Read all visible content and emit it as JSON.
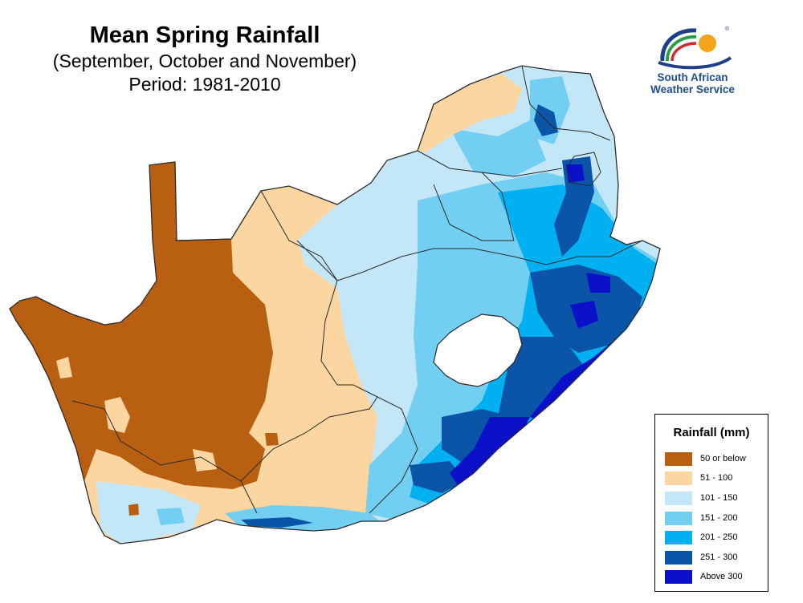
{
  "title": {
    "main": "Mean Spring Rainfall",
    "months": "(September, October and November)",
    "period": "Period: 1981-2010"
  },
  "logo": {
    "line1": "South African",
    "line2": "Weather Service",
    "icon": "saws-logo-icon"
  },
  "legend": {
    "title": "Rainfall (mm)",
    "items": [
      {
        "label": "50 or below",
        "color": "#b85f12"
      },
      {
        "label": "51 - 100",
        "color": "#fbd6a1"
      },
      {
        "label": "101 - 150",
        "color": "#c4e7f8"
      },
      {
        "label": "151 - 200",
        "color": "#73cff2"
      },
      {
        "label": "201 - 250",
        "color": "#00b0f0"
      },
      {
        "label": "251 - 300",
        "color": "#0a55a8"
      },
      {
        "label": "Above 300",
        "color": "#0b10c9"
      }
    ]
  },
  "map": {
    "region": "South Africa",
    "enclave": "Lesotho (no data, white)",
    "border_color": "#2a2a2a"
  }
}
